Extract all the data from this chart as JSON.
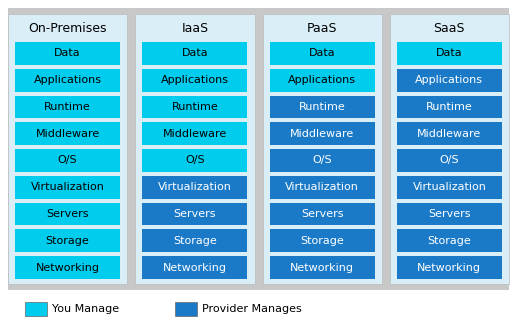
{
  "columns": [
    "On-Premises",
    "IaaS",
    "PaaS",
    "SaaS"
  ],
  "rows": [
    "Data",
    "Applications",
    "Runtime",
    "Middleware",
    "O/S",
    "Virtualization",
    "Servers",
    "Storage",
    "Networking"
  ],
  "you_manage_color": "#00CCEE",
  "provider_color": "#1A7AC8",
  "column_bg_color": "#DAEEF8",
  "outer_bg_color": "#C8C8C8",
  "white_bg": "#FFFFFF",
  "cell_colors": {
    "On-Premises": [
      "you",
      "you",
      "you",
      "you",
      "you",
      "you",
      "you",
      "you",
      "you"
    ],
    "IaaS": [
      "you",
      "you",
      "you",
      "you",
      "you",
      "provider",
      "provider",
      "provider",
      "provider"
    ],
    "PaaS": [
      "you",
      "you",
      "provider",
      "provider",
      "provider",
      "provider",
      "provider",
      "provider",
      "provider"
    ],
    "SaaS": [
      "you",
      "provider",
      "provider",
      "provider",
      "provider",
      "provider",
      "provider",
      "provider",
      "provider"
    ]
  },
  "legend_you": "You Manage",
  "legend_provider": "Provider Manages",
  "title_fontsize": 9,
  "cell_fontsize": 8,
  "legend_fontsize": 8
}
